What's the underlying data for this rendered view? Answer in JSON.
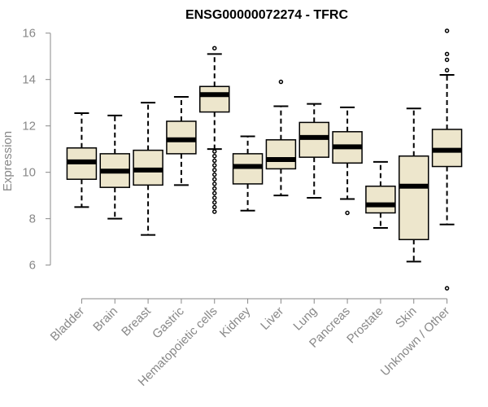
{
  "chart_data": {
    "type": "box",
    "title": "ENSG00000072274 - TFRC",
    "xlabel": "",
    "ylabel": "Expression",
    "ylim": [
      4.9,
      16.2
    ],
    "yticks": [
      6,
      8,
      10,
      12,
      14,
      16
    ],
    "colors": {
      "box_fill": "#ede6cc",
      "box_stroke": "#000000",
      "axis": "#888888"
    },
    "categories": [
      "Bladder",
      "Brain",
      "Breast",
      "Gastric",
      "Hematopoietic cells",
      "Kidney",
      "Liver",
      "Lung",
      "Pancreas",
      "Prostate",
      "Skin",
      "Unknown / Other"
    ],
    "boxes": [
      {
        "category": "Bladder",
        "whisker_low": 8.5,
        "q1": 9.7,
        "median": 10.45,
        "q3": 11.05,
        "whisker_high": 12.55,
        "outliers": []
      },
      {
        "category": "Brain",
        "whisker_low": 8.0,
        "q1": 9.35,
        "median": 10.05,
        "q3": 10.8,
        "whisker_high": 12.45,
        "outliers": []
      },
      {
        "category": "Breast",
        "whisker_low": 7.3,
        "q1": 9.45,
        "median": 10.1,
        "q3": 10.95,
        "whisker_high": 13.0,
        "outliers": []
      },
      {
        "category": "Gastric",
        "whisker_low": 9.45,
        "q1": 10.8,
        "median": 11.4,
        "q3": 12.2,
        "whisker_high": 13.25,
        "outliers": []
      },
      {
        "category": "Hematopoietic cells",
        "whisker_low": 11.0,
        "q1": 12.6,
        "median": 13.35,
        "q3": 13.7,
        "whisker_high": 15.1,
        "outliers": [
          15.35,
          10.9,
          10.7,
          10.5,
          10.3,
          10.1,
          9.9,
          9.7,
          9.5,
          9.3,
          9.1,
          8.9,
          8.7,
          8.5,
          8.3
        ]
      },
      {
        "category": "Kidney",
        "whisker_low": 8.35,
        "q1": 9.5,
        "median": 10.25,
        "q3": 10.8,
        "whisker_high": 11.55,
        "outliers": []
      },
      {
        "category": "Liver",
        "whisker_low": 9.0,
        "q1": 10.15,
        "median": 10.55,
        "q3": 11.4,
        "whisker_high": 12.85,
        "outliers": [
          13.9
        ]
      },
      {
        "category": "Lung",
        "whisker_low": 8.9,
        "q1": 10.65,
        "median": 11.5,
        "q3": 12.15,
        "whisker_high": 12.95,
        "outliers": []
      },
      {
        "category": "Pancreas",
        "whisker_low": 8.85,
        "q1": 10.4,
        "median": 11.1,
        "q3": 11.75,
        "whisker_high": 12.8,
        "outliers": [
          8.25
        ]
      },
      {
        "category": "Prostate",
        "whisker_low": 7.6,
        "q1": 8.25,
        "median": 8.6,
        "q3": 9.4,
        "whisker_high": 10.45,
        "outliers": []
      },
      {
        "category": "Skin",
        "whisker_low": 6.15,
        "q1": 7.1,
        "median": 9.4,
        "q3": 10.7,
        "whisker_high": 12.75,
        "outliers": []
      },
      {
        "category": "Unknown / Other",
        "whisker_low": 7.75,
        "q1": 10.25,
        "median": 10.95,
        "q3": 11.85,
        "whisker_high": 14.2,
        "outliers": [
          16.1,
          15.1,
          14.85,
          14.4,
          5.0
        ]
      }
    ]
  }
}
